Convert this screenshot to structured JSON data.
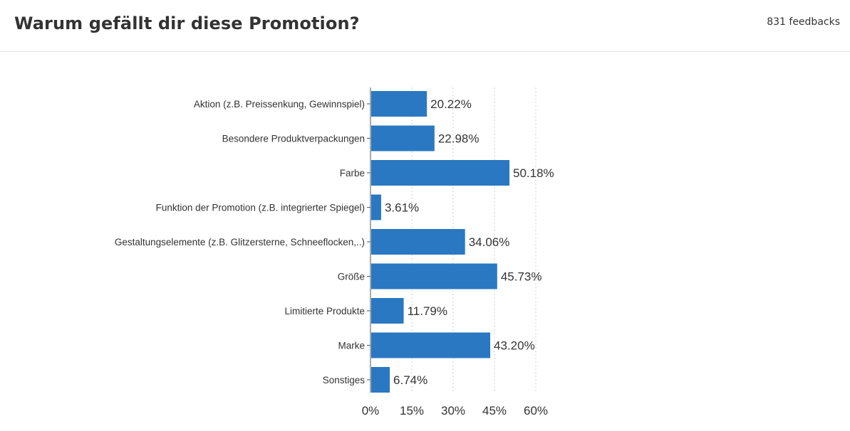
{
  "header": {
    "title": "Warum gefällt dir diese Promotion?",
    "feedbacks": "831 feedbacks"
  },
  "colors": {
    "bar": "#2a78c2",
    "grid": "#cccccc",
    "axis": "#555555",
    "text": "#333333"
  },
  "chart_data": {
    "type": "bar",
    "orientation": "horizontal",
    "categories": [
      "Aktion (z.B. Preissenkung, Gewinnspiel)",
      "Besondere Produktverpackungen",
      "Farbe",
      "Funktion der Promotion (z.B. integrierter Spiegel)",
      "Gestaltungselemente (z.B. Glitzersterne, Schneeflocken,..)",
      "Größe",
      "Limitierte Produkte",
      "Marke",
      "Sonstiges"
    ],
    "values": [
      20.22,
      22.98,
      50.18,
      3.61,
      34.06,
      45.73,
      11.79,
      43.2,
      6.74
    ],
    "value_labels": [
      "20.22%",
      "22.98%",
      "50.18%",
      "3.61%",
      "34.06%",
      "45.73%",
      "11.79%",
      "43.20%",
      "6.74%"
    ],
    "xlim": [
      0,
      60
    ],
    "xticks": [
      0,
      15,
      30,
      45,
      60
    ],
    "xtick_labels": [
      "0%",
      "15%",
      "30%",
      "45%",
      "60%"
    ],
    "grid": "vertical dotted",
    "legend": "none"
  }
}
